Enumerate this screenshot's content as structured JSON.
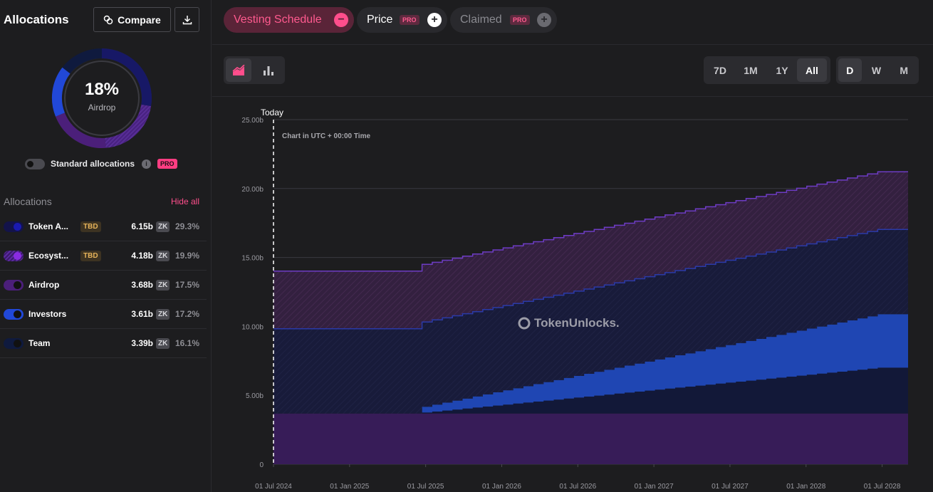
{
  "sidebar": {
    "title": "Allocations",
    "compare_label": "Compare",
    "donut": {
      "percent": "18%",
      "label": "Airdrop"
    },
    "standard_allocations_label": "Standard allocations",
    "info_glyph": "i",
    "pro_label": "PRO",
    "allocations_heading": "Allocations",
    "hide_all_label": "Hide all",
    "items": [
      {
        "name": "Token A...",
        "tbd": "TBD",
        "amount": "6.15b",
        "token": "ZK",
        "percent": "29.3%",
        "color": "#13134a",
        "dot": "#1a1ab0"
      },
      {
        "name": "Ecosyst...",
        "tbd": "TBD",
        "amount": "4.18b",
        "token": "ZK",
        "percent": "19.9%",
        "color": "#3b1a6b",
        "dot": "#8a2be2"
      },
      {
        "name": "Airdrop",
        "tbd": "",
        "amount": "3.68b",
        "token": "ZK",
        "percent": "17.5%",
        "color": "#3b1a6b",
        "dot": "#111111"
      },
      {
        "name": "Investors",
        "tbd": "",
        "amount": "3.61b",
        "token": "ZK",
        "percent": "17.2%",
        "color": "#1f47d8",
        "dot": "#111111"
      },
      {
        "name": "Team",
        "tbd": "",
        "amount": "3.39b",
        "token": "ZK",
        "percent": "16.1%",
        "color": "#0f1a3a",
        "dot": "#111111"
      }
    ]
  },
  "chips": {
    "vesting": {
      "label": "Vesting Schedule",
      "icon": "−"
    },
    "price": {
      "label": "Price",
      "pro": "PRO",
      "icon": "+"
    },
    "claimed": {
      "label": "Claimed",
      "pro": "PRO",
      "icon": "+"
    }
  },
  "ranges": [
    "7D",
    "1M",
    "1Y",
    "All"
  ],
  "active_range": "All",
  "granularity": [
    "D",
    "W",
    "M"
  ],
  "active_granularity": "D",
  "chart_data": {
    "type": "area",
    "title": "",
    "note": "Chart in UTC + 00:00 Time",
    "today_label": "Today",
    "watermark": "TokenUnlocks.",
    "y_ticks": [
      "0",
      "5.00b",
      "10.00b",
      "15.00b",
      "20.00b",
      "25.00b"
    ],
    "ylim": [
      0,
      25
    ],
    "x_ticks": [
      "01 Jul 2024",
      "01 Jan 2025",
      "01 Jul 2025",
      "01 Jan 2026",
      "01 Jul 2026",
      "01 Jan 2027",
      "01 Jul 2027",
      "01 Jan 2028",
      "01 Jul 2028"
    ],
    "series": [
      {
        "name": "Airdrop",
        "color": "#391a5c",
        "start": 3.68,
        "end": 3.68
      },
      {
        "name": "Team",
        "color": "#111633",
        "start": 0.0,
        "end": 3.39
      },
      {
        "name": "Investors",
        "color": "#1f46b8",
        "start": 0.0,
        "end": 3.61
      },
      {
        "name": "Token Assembly",
        "color": "#151a3d",
        "start": 6.15,
        "end": 6.15
      },
      {
        "name": "Ecosystem",
        "color": "#36214f",
        "start": 4.18,
        "end": 4.18
      }
    ]
  }
}
